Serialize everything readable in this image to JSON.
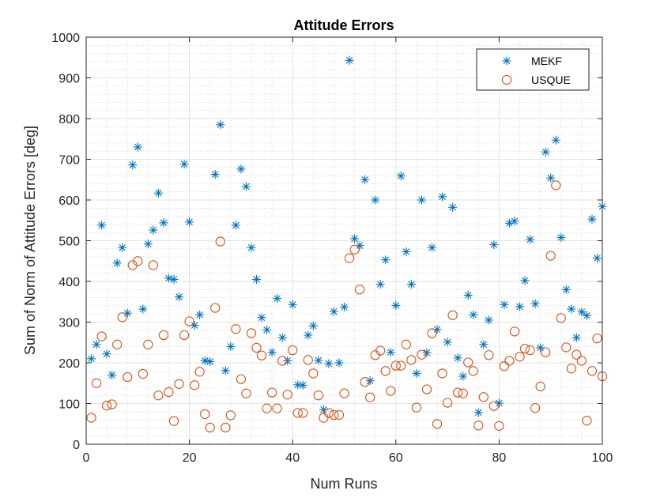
{
  "chart_data": {
    "type": "scatter",
    "title": "Attitude Errors",
    "xlabel": "Num Runs",
    "ylabel": "Sum of Norm of Attitude Errors [deg]",
    "xlim": [
      0,
      100
    ],
    "ylim": [
      0,
      1000
    ],
    "xticks": [
      0,
      20,
      40,
      60,
      80,
      100
    ],
    "yticks": [
      0,
      100,
      200,
      300,
      400,
      500,
      600,
      700,
      800,
      900,
      1000
    ],
    "xtick_labels": [
      "0",
      "20",
      "40",
      "60",
      "80",
      "100"
    ],
    "ytick_labels": [
      "0",
      "100",
      "200",
      "300",
      "400",
      "500",
      "600",
      "700",
      "800",
      "900",
      "1000"
    ],
    "grid": true,
    "minor_grid": true,
    "legend": "top-right",
    "series": [
      {
        "name": "MEKF",
        "marker": "asterisk",
        "color": "#0072BD",
        "x": [
          1,
          2,
          3,
          4,
          5,
          6,
          7,
          8,
          9,
          10,
          11,
          12,
          13,
          14,
          15,
          16,
          17,
          18,
          19,
          20,
          21,
          22,
          23,
          24,
          25,
          26,
          27,
          28,
          29,
          30,
          31,
          32,
          33,
          34,
          35,
          36,
          37,
          38,
          39,
          40,
          41,
          42,
          43,
          44,
          45,
          46,
          47,
          48,
          49,
          50,
          51,
          52,
          53,
          54,
          55,
          56,
          57,
          58,
          59,
          60,
          61,
          62,
          63,
          64,
          65,
          66,
          67,
          68,
          69,
          70,
          71,
          72,
          73,
          74,
          75,
          76,
          77,
          78,
          79,
          80,
          81,
          82,
          83,
          84,
          85,
          86,
          87,
          88,
          89,
          90,
          91,
          92,
          93,
          94,
          95,
          96,
          97,
          98,
          99,
          100
        ],
        "y": [
          210,
          245,
          538,
          222,
          170,
          445,
          483,
          322,
          686,
          730,
          332,
          492,
          526,
          617,
          544,
          408,
          405,
          362,
          688,
          546,
          292,
          318,
          205,
          203,
          663,
          785,
          181,
          240,
          538,
          676,
          633,
          483,
          405,
          311,
          281,
          226,
          358,
          262,
          205,
          343,
          146,
          145,
          268,
          291,
          206,
          85,
          198,
          326,
          200,
          337,
          943,
          505,
          488,
          650,
          156,
          600,
          393,
          453,
          226,
          341,
          659,
          473,
          393,
          174,
          600,
          225,
          483,
          282,
          608,
          251,
          582,
          212,
          167,
          366,
          318,
          78,
          245,
          305,
          490,
          101,
          343,
          543,
          548,
          338,
          402,
          503,
          345,
          237,
          718,
          654,
          747,
          508,
          380,
          332,
          262,
          325,
          316,
          553,
          457,
          584
        ]
      },
      {
        "name": "USQUE",
        "marker": "circle",
        "color": "#D95319",
        "x": [
          1,
          2,
          3,
          4,
          5,
          6,
          7,
          8,
          9,
          10,
          11,
          12,
          13,
          14,
          15,
          16,
          17,
          18,
          19,
          20,
          21,
          22,
          23,
          24,
          25,
          26,
          27,
          28,
          29,
          30,
          31,
          32,
          33,
          34,
          35,
          36,
          37,
          38,
          39,
          40,
          41,
          42,
          43,
          44,
          45,
          46,
          47,
          48,
          49,
          50,
          51,
          52,
          53,
          54,
          55,
          56,
          57,
          58,
          59,
          60,
          61,
          62,
          63,
          64,
          65,
          66,
          67,
          68,
          69,
          70,
          71,
          72,
          73,
          74,
          75,
          76,
          77,
          78,
          79,
          80,
          81,
          82,
          83,
          84,
          85,
          86,
          87,
          88,
          89,
          90,
          91,
          92,
          93,
          94,
          95,
          96,
          97,
          98,
          99,
          100
        ],
        "y": [
          65,
          150,
          265,
          95,
          98,
          245,
          312,
          165,
          440,
          450,
          173,
          245,
          440,
          120,
          268,
          128,
          57,
          148,
          268,
          302,
          145,
          178,
          74,
          41,
          335,
          498,
          41,
          71,
          283,
          160,
          125,
          273,
          237,
          218,
          88,
          127,
          88,
          205,
          122,
          231,
          77,
          77,
          207,
          174,
          120,
          65,
          77,
          72,
          72,
          125,
          457,
          478,
          380,
          153,
          115,
          219,
          230,
          180,
          131,
          193,
          193,
          245,
          207,
          90,
          220,
          135,
          273,
          50,
          174,
          102,
          317,
          127,
          125,
          201,
          180,
          46,
          116,
          219,
          94,
          45,
          192,
          205,
          277,
          215,
          235,
          231,
          89,
          142,
          226,
          463,
          636,
          310,
          238,
          186,
          220,
          205,
          58,
          180,
          260,
          167
        ]
      }
    ]
  }
}
